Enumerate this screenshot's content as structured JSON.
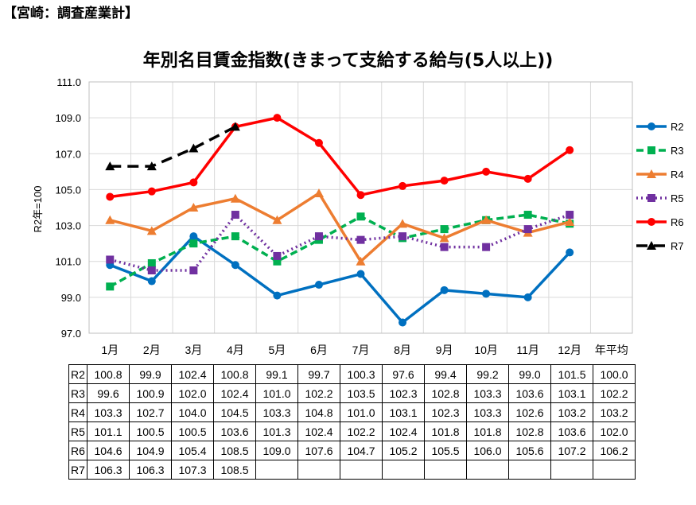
{
  "header": "【宮崎：調査産業計】",
  "chart_data": {
    "type": "line",
    "title": "年別名目賃金指数(きまって支給する給与(5人以上))",
    "ylabel": "R2年=100",
    "xlabel": "",
    "ylim": [
      97.0,
      111.0
    ],
    "yticks": [
      "97.0",
      "99.0",
      "101.0",
      "103.0",
      "105.0",
      "107.0",
      "109.0",
      "111.0"
    ],
    "categories": [
      "1月",
      "2月",
      "3月",
      "4月",
      "5月",
      "6月",
      "7月",
      "8月",
      "9月",
      "10月",
      "11月",
      "12月",
      "年平均"
    ],
    "grid": true,
    "legend_position": "right",
    "series": [
      {
        "name": "R2",
        "color": "#0070C0",
        "marker": "circle",
        "dash": "solid",
        "values": [
          100.8,
          99.9,
          102.4,
          100.8,
          99.1,
          99.7,
          100.3,
          97.6,
          99.4,
          99.2,
          99.0,
          101.5,
          null
        ],
        "table": [
          "100.8",
          "99.9",
          "102.4",
          "100.8",
          "99.1",
          "99.7",
          "100.3",
          "97.6",
          "99.4",
          "99.2",
          "99.0",
          "101.5",
          "100.0"
        ]
      },
      {
        "name": "R3",
        "color": "#00B050",
        "marker": "square",
        "dash": "dashed",
        "values": [
          99.6,
          100.9,
          102.0,
          102.4,
          101.0,
          102.2,
          103.5,
          102.3,
          102.8,
          103.3,
          103.6,
          103.1,
          null
        ],
        "table": [
          "99.6",
          "100.9",
          "102.0",
          "102.4",
          "101.0",
          "102.2",
          "103.5",
          "102.3",
          "102.8",
          "103.3",
          "103.6",
          "103.1",
          "102.2"
        ]
      },
      {
        "name": "R4",
        "color": "#ED7D31",
        "marker": "triangle",
        "dash": "solid",
        "values": [
          103.3,
          102.7,
          104.0,
          104.5,
          103.3,
          104.8,
          101.0,
          103.1,
          102.3,
          103.3,
          102.6,
          103.2,
          null
        ],
        "table": [
          "103.3",
          "102.7",
          "104.0",
          "104.5",
          "103.3",
          "104.8",
          "101.0",
          "103.1",
          "102.3",
          "103.3",
          "102.6",
          "103.2",
          "103.2"
        ]
      },
      {
        "name": "R5",
        "color": "#7030A0",
        "marker": "square",
        "dash": "dotted",
        "values": [
          101.1,
          100.5,
          100.5,
          103.6,
          101.3,
          102.4,
          102.2,
          102.4,
          101.8,
          101.8,
          102.8,
          103.6,
          null
        ],
        "table": [
          "101.1",
          "100.5",
          "100.5",
          "103.6",
          "101.3",
          "102.4",
          "102.2",
          "102.4",
          "101.8",
          "101.8",
          "102.8",
          "103.6",
          "102.0"
        ]
      },
      {
        "name": "R6",
        "color": "#FF0000",
        "marker": "circle",
        "dash": "solid",
        "values": [
          104.6,
          104.9,
          105.4,
          108.5,
          109.0,
          107.6,
          104.7,
          105.2,
          105.5,
          106.0,
          105.6,
          107.2,
          null
        ],
        "table": [
          "104.6",
          "104.9",
          "105.4",
          "108.5",
          "109.0",
          "107.6",
          "104.7",
          "105.2",
          "105.5",
          "106.0",
          "105.6",
          "107.2",
          "106.2"
        ]
      },
      {
        "name": "R7",
        "color": "#000000",
        "marker": "triangle",
        "dash": "longdash",
        "values": [
          106.3,
          106.3,
          107.3,
          108.5,
          null,
          null,
          null,
          null,
          null,
          null,
          null,
          null,
          null
        ],
        "table": [
          "106.3",
          "106.3",
          "107.3",
          "108.5",
          "",
          "",
          "",
          "",
          "",
          "",
          "",
          "",
          ""
        ]
      }
    ]
  }
}
